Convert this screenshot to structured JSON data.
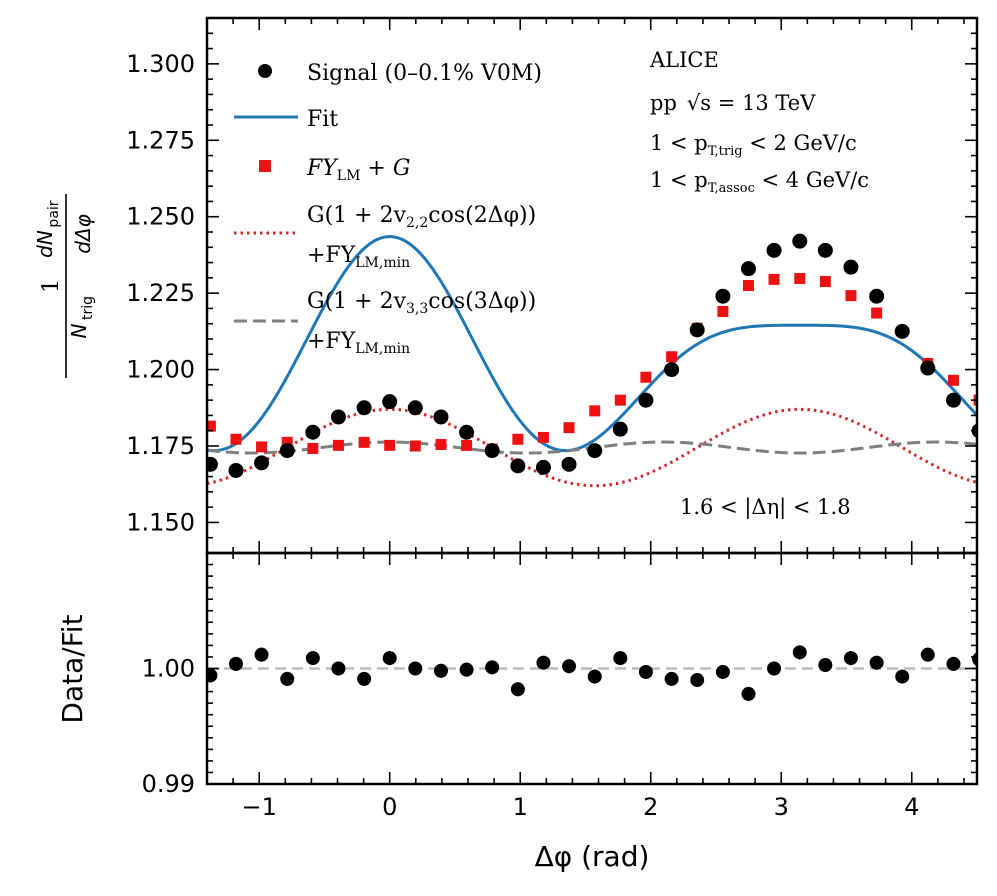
{
  "chart_data": [
    {
      "type": "scatter",
      "panel": "main",
      "xlim": [
        -1.4,
        4.5
      ],
      "ylim": [
        1.14,
        1.315
      ],
      "xlabel": "Δφ (rad)",
      "ylabel": "1/N_trig dN_pair/dΔφ",
      "ylabel_parts": {
        "one": "1",
        "num": "dN",
        "num_sub": "pair",
        "den_n": "N",
        "den_sub": "trig",
        "den_d": "dΔφ"
      },
      "xticks": [
        -1,
        0,
        1,
        2,
        3,
        4
      ],
      "xtick_labels": [
        "−1",
        "0",
        "1",
        "2",
        "3",
        "4"
      ],
      "yticks": [
        1.15,
        1.175,
        1.2,
        1.225,
        1.25,
        1.275,
        1.3
      ],
      "ytick_labels": [
        "1.150",
        "1.175",
        "1.200",
        "1.225",
        "1.250",
        "1.275",
        "1.300"
      ],
      "x": [
        -1.374,
        -1.178,
        -0.982,
        -0.785,
        -0.589,
        -0.393,
        -0.196,
        0.0,
        0.196,
        0.393,
        0.589,
        0.785,
        0.982,
        1.178,
        1.374,
        1.571,
        1.767,
        1.963,
        2.16,
        2.356,
        2.553,
        2.749,
        2.945,
        3.142,
        3.338,
        3.534,
        3.731,
        3.927,
        4.123,
        4.32,
        4.516
      ],
      "series": [
        {
          "name": "Signal (0–0.1% V0M)",
          "kind": "markers-circle",
          "color": "#000000",
          "values": [
            1.169,
            1.167,
            1.1695,
            1.1735,
            1.1795,
            1.1845,
            1.1875,
            1.1895,
            1.1875,
            1.1845,
            1.1795,
            1.1735,
            1.1685,
            1.168,
            1.169,
            1.1735,
            1.1805,
            1.19,
            1.2,
            1.213,
            1.224,
            1.233,
            1.239,
            1.242,
            1.239,
            1.2335,
            1.224,
            1.2125,
            1.2005,
            1.19,
            1.18
          ]
        },
        {
          "name": "FY_LM + G",
          "kind": "markers-square",
          "color": "#ee1111",
          "values": [
            1.1815,
            1.1772,
            1.1747,
            1.1762,
            1.1742,
            1.1752,
            1.1762,
            1.1752,
            1.175,
            1.1755,
            1.1752,
            1.174,
            1.1772,
            1.1778,
            1.181,
            1.1865,
            1.19,
            1.1975,
            1.2042,
            1.2135,
            1.219,
            1.2275,
            1.2295,
            1.2298,
            1.2288,
            1.2242,
            1.2185,
            1.2125,
            1.202,
            1.1965,
            1.19
          ]
        },
        {
          "name": "Fit",
          "kind": "curve",
          "style": "solid",
          "color": "#1f77b4",
          "model": "1.2030 + 0.0035cos(x) + 0.0260cos(2x) + 0.0110cos(3x)"
        },
        {
          "name": "G(1+2v22cos(2Δφ)) + FY_LM,min",
          "kind": "curve",
          "style": "dotted",
          "color": "#d62728",
          "model": "1.1745 + 0.0125cos(2x)"
        },
        {
          "name": "G(1+2v33cos(3Δφ)) + FY_LM,min",
          "kind": "curve",
          "style": "dashed",
          "color": "#7f7f7f",
          "model": "1.1745 + 0.0018cos(3x)"
        }
      ],
      "legend_position": "top-left",
      "legend": [
        {
          "label": "Signal (0–0.1% V0M)"
        },
        {
          "label": "Fit"
        },
        {
          "label_main": "FY",
          "label_sub": "LM",
          "label_rest": " + G"
        },
        {
          "line1": "G(1 + 2v",
          "line1_sub": "2,2",
          "line1_rest": "cos(2Δφ))",
          "line2": "+FY",
          "line2_sub": "LM,min"
        },
        {
          "line1": "G(1 + 2v",
          "line1_sub": "3,3",
          "line1_rest": "cos(3Δφ))",
          "line2": "+FY",
          "line2_sub": "LM,min"
        }
      ],
      "annotations": {
        "experiment": "ALICE",
        "energy_prefix": "pp",
        "energy_sqrt": "√s",
        "energy_rest": " = 13 TeV",
        "trig_pre": "1 < p",
        "trig_sub": "T,trig",
        "trig_post": " < 2 GeV/c",
        "assoc_pre": "1 < p",
        "assoc_sub": "T,assoc",
        "assoc_post": " < 4 GeV/c",
        "eta_range": "1.6 < |Δη| < 1.8"
      }
    },
    {
      "type": "scatter",
      "panel": "ratio",
      "xlim": [
        -1.4,
        4.5
      ],
      "ylim": [
        0.99,
        1.01
      ],
      "xlabel": "Δφ (rad)",
      "ylabel": "Data/Fit",
      "yticks": [
        0.99,
        1.0
      ],
      "ytick_labels": [
        "0.99",
        "1.00"
      ],
      "reference_line": 1.0,
      "x": [
        -1.374,
        -1.178,
        -0.982,
        -0.785,
        -0.589,
        -0.393,
        -0.196,
        0.0,
        0.196,
        0.393,
        0.589,
        0.785,
        0.982,
        1.178,
        1.374,
        1.571,
        1.767,
        1.963,
        2.16,
        2.356,
        2.553,
        2.749,
        2.945,
        3.142,
        3.338,
        3.534,
        3.731,
        3.927,
        4.123,
        4.32,
        4.516
      ],
      "series": [
        {
          "name": "Data/Fit",
          "kind": "markers-errorbar",
          "color": "#000000",
          "error": 0.0006,
          "values": [
            0.9994,
            1.0004,
            1.0012,
            0.9991,
            1.0009,
            1.0,
            0.9991,
            1.0009,
            1.0,
            0.9998,
            0.9999,
            1.0001,
            0.9982,
            1.0005,
            1.0002,
            0.9993,
            1.0009,
            0.9997,
            0.9991,
            0.999,
            0.9997,
            0.9978,
            1.0,
            1.0014,
            1.0003,
            1.0009,
            1.0005,
            0.9993,
            1.0012,
            1.0004,
            1.0008
          ]
        }
      ]
    }
  ]
}
